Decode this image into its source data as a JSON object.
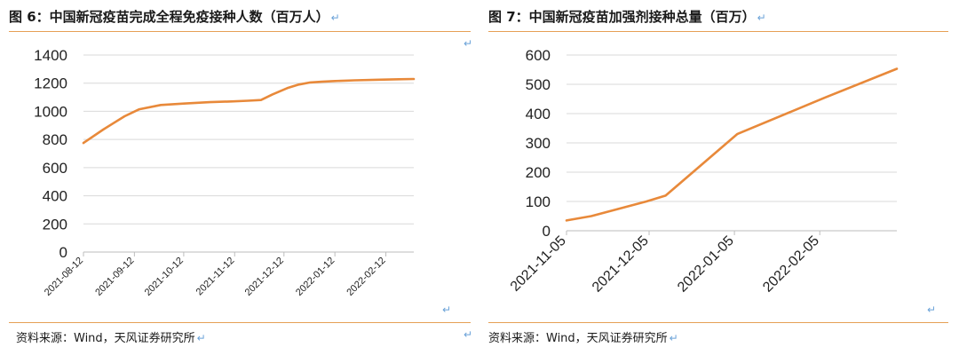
{
  "figures": [
    {
      "title": "图 6：中国新冠疫苗完成全程免疫接种人数（百万人）",
      "source": "资料来源：Wind，天风证券研究所",
      "return_mark": "↵",
      "chart_data": {
        "type": "line",
        "title": "图 6：中国新冠疫苗完成全程免疫接种人数（百万人）",
        "xlabel": "",
        "ylabel": "",
        "ylim": [
          0,
          1400
        ],
        "y_ticks": [
          0,
          200,
          400,
          600,
          800,
          1000,
          1200,
          1400
        ],
        "x_tick_labels": [
          "2021-08-12",
          "2021-09-12",
          "2021-10-12",
          "2021-11-12",
          "2021-12-12",
          "2022-01-12",
          "2022-02-12"
        ],
        "x_range": [
          "2021-08-12",
          "2022-03-01"
        ],
        "grid": true,
        "legend": "none",
        "color": "#e8893a",
        "x": [
          "2021-08-12",
          "2021-08-24",
          "2021-09-06",
          "2021-09-15",
          "2021-09-28",
          "2021-10-12",
          "2021-10-28",
          "2021-11-10",
          "2021-11-20",
          "2021-11-28",
          "2021-12-05",
          "2021-12-14",
          "2021-12-21",
          "2021-12-28",
          "2022-01-04",
          "2022-01-12",
          "2022-01-24",
          "2022-02-08",
          "2022-02-20",
          "2022-03-01"
        ],
        "values": [
          775,
          870,
          965,
          1015,
          1045,
          1055,
          1065,
          1070,
          1075,
          1080,
          1120,
          1165,
          1190,
          1205,
          1210,
          1215,
          1220,
          1225,
          1228,
          1230
        ]
      }
    },
    {
      "title": "图 7：中国新冠疫苗加强剂接种总量（百万）",
      "source": "资料来源：Wind，天风证券研究所",
      "return_mark": "↵",
      "chart_data": {
        "type": "line",
        "title": "图 7：中国新冠疫苗加强剂接种总量（百万）",
        "xlabel": "",
        "ylabel": "",
        "ylim": [
          0,
          600
        ],
        "y_ticks": [
          0,
          100,
          200,
          300,
          400,
          500,
          600
        ],
        "x_tick_labels": [
          "2021-11-05",
          "2021-12-05",
          "2022-01-05",
          "2022-02-05"
        ],
        "x_range": [
          "2021-11-05",
          "2022-03-05"
        ],
        "grid": true,
        "legend": "none",
        "color": "#e8893a",
        "x": [
          "2021-11-05",
          "2021-11-14",
          "2021-11-24",
          "2021-12-04",
          "2021-12-11",
          "2022-01-06",
          "2022-02-07",
          "2022-03-05"
        ],
        "values": [
          35,
          50,
          75,
          100,
          120,
          330,
          455,
          553
        ]
      }
    }
  ]
}
